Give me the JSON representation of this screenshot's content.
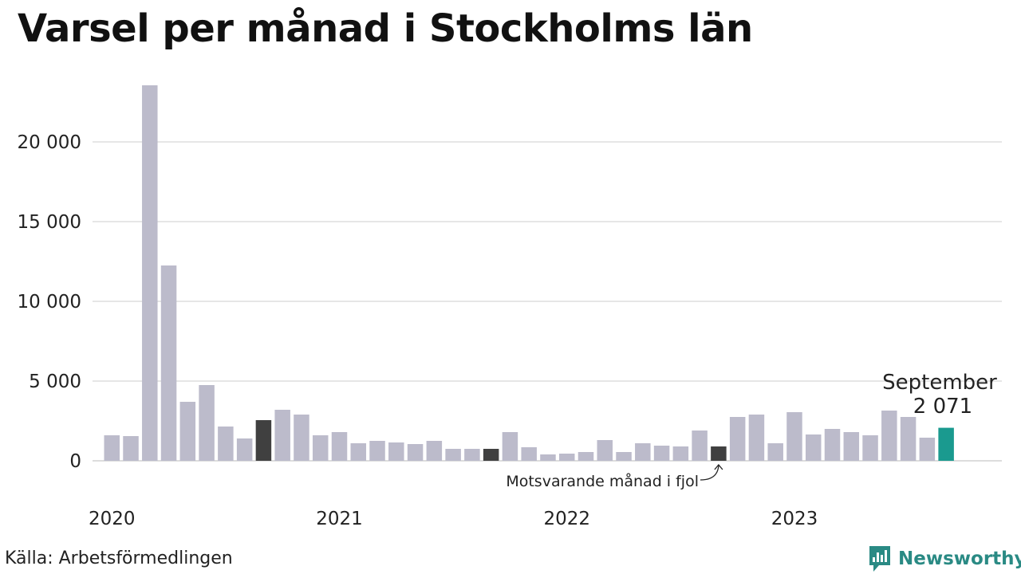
{
  "header": {
    "title": "Varsel per månad i Stockholms län"
  },
  "footer": {
    "source": "Källa: Arbetsförmedlingen",
    "brand": "Newsworthy"
  },
  "colors": {
    "bar": "#bcbbcb",
    "highlight_previous_years": "#404040",
    "highlight_current": "#1a9a8f",
    "grid": "#dddddd",
    "brand": "#2a8a84"
  },
  "icons": {
    "logo": "newsworthy-chart-icon",
    "arrow": "curved-arrow"
  },
  "chart_data": {
    "type": "bar",
    "title": "Varsel per månad i Stockholms län",
    "xlabel": "",
    "ylabel": "",
    "ylim": [
      0,
      24000
    ],
    "yticks": [
      0,
      5000,
      10000,
      15000,
      20000
    ],
    "ytick_labels": [
      "0",
      "5 000",
      "10 000",
      "15 000",
      "20 000"
    ],
    "grid": true,
    "x_year_labels": [
      "2020",
      "2021",
      "2022",
      "2023"
    ],
    "categories": [
      "2020-01",
      "2020-02",
      "2020-03",
      "2020-04",
      "2020-05",
      "2020-06",
      "2020-07",
      "2020-08",
      "2020-09",
      "2020-10",
      "2020-11",
      "2020-12",
      "2021-01",
      "2021-02",
      "2021-03",
      "2021-04",
      "2021-05",
      "2021-06",
      "2021-07",
      "2021-08",
      "2021-09",
      "2021-10",
      "2021-11",
      "2021-12",
      "2022-01",
      "2022-02",
      "2022-03",
      "2022-04",
      "2022-05",
      "2022-06",
      "2022-07",
      "2022-08",
      "2022-09",
      "2022-10",
      "2022-11",
      "2022-12",
      "2023-01",
      "2023-02",
      "2023-03",
      "2023-04",
      "2023-05",
      "2023-06",
      "2023-07",
      "2023-08",
      "2023-09"
    ],
    "values": [
      1600,
      1550,
      23550,
      12250,
      3700,
      4750,
      2150,
      1400,
      2550,
      3200,
      2900,
      1600,
      1800,
      1100,
      1250,
      1150,
      1050,
      1250,
      750,
      750,
      750,
      1800,
      850,
      400,
      450,
      550,
      1300,
      550,
      1100,
      950,
      900,
      1900,
      900,
      2750,
      2900,
      1100,
      3050,
      1650,
      2000,
      1800,
      1600,
      3150,
      2750,
      1450,
      2071
    ],
    "highlighted": {
      "previous_years": [
        "2020-09",
        "2021-09",
        "2022-09"
      ],
      "current": "2023-09"
    },
    "annotations": {
      "current_month": "September",
      "current_value": "2 071",
      "previous_note": "Motsvarande månad i fjol"
    }
  }
}
